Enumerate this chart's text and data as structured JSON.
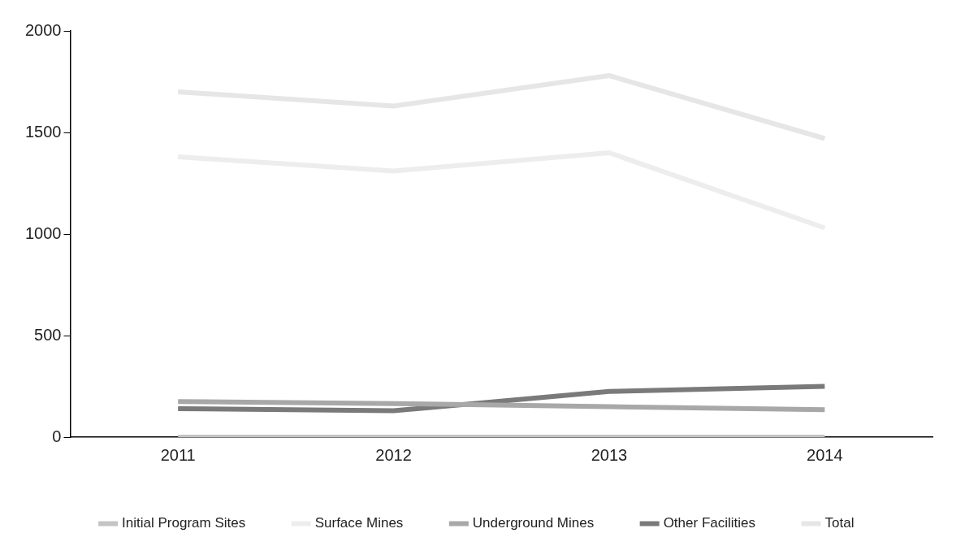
{
  "chart_data": {
    "type": "line",
    "categories": [
      "2011",
      "2012",
      "2013",
      "2014"
    ],
    "series": [
      {
        "name": "Initial Program Sites",
        "color": "#c4c4c4",
        "values": [
          0,
          0,
          0,
          0
        ]
      },
      {
        "name": "Surface Mines",
        "color": "#ededed",
        "values": [
          1380,
          1310,
          1400,
          1030
        ]
      },
      {
        "name": "Underground Mines",
        "color": "#a8a8a8",
        "values": [
          175,
          165,
          150,
          135
        ]
      },
      {
        "name": "Other Facilities",
        "color": "#7a7a7a",
        "values": [
          140,
          130,
          225,
          250
        ]
      },
      {
        "name": "Total",
        "color": "#e6e6e6",
        "values": [
          1700,
          1630,
          1780,
          1470
        ]
      }
    ],
    "ylim": [
      0,
      2000
    ],
    "yticks": [
      0,
      500,
      1000,
      1500,
      2000
    ],
    "grid": false,
    "legend": "bottom",
    "marker": "none",
    "line_style": "solid"
  }
}
